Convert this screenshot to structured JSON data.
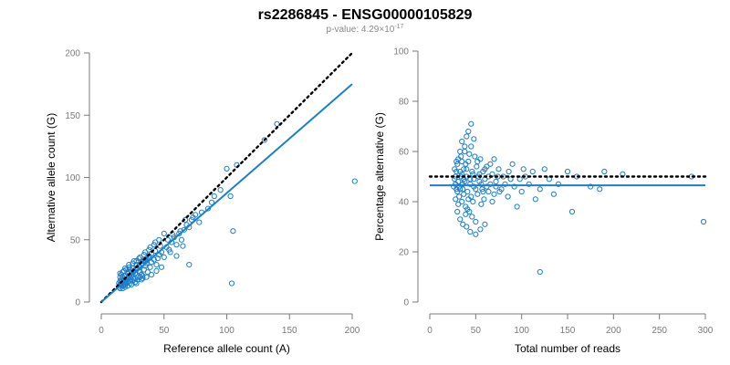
{
  "header": {
    "title": "rs2286845 - ENSG00000105829",
    "pvalue_prefix": "p-value: 4.29×10",
    "pvalue_exponent": "-17"
  },
  "colors": {
    "points": "#1a7fcf",
    "fit_line": "#1a7fcf",
    "reference_line": "#000000",
    "axis": "#7a7a7a"
  },
  "chart_data": [
    {
      "type": "scatter",
      "name": "left-panel",
      "xlabel": "Reference allele count (A)",
      "ylabel": "Alternative allele count (G)",
      "xlim": [
        0,
        200
      ],
      "ylim": [
        0,
        200
      ],
      "xticks": [
        0,
        50,
        100,
        150,
        200
      ],
      "yticks": [
        0,
        50,
        100,
        150,
        200
      ],
      "reference_line": {
        "style": "dotted",
        "from": [
          0,
          0
        ],
        "to": [
          200,
          200
        ]
      },
      "fit_line": {
        "style": "solid",
        "from": [
          0,
          0
        ],
        "to": [
          200,
          175
        ]
      },
      "points": [
        [
          14,
          12
        ],
        [
          15,
          14
        ],
        [
          16,
          15
        ],
        [
          17,
          13
        ],
        [
          18,
          16
        ],
        [
          15,
          20
        ],
        [
          16,
          22
        ],
        [
          18,
          18
        ],
        [
          20,
          15
        ],
        [
          21,
          19
        ],
        [
          22,
          24
        ],
        [
          23,
          17
        ],
        [
          24,
          21
        ],
        [
          25,
          27
        ],
        [
          26,
          18
        ],
        [
          27,
          23
        ],
        [
          28,
          30
        ],
        [
          29,
          20
        ],
        [
          30,
          25
        ],
        [
          31,
          28
        ],
        [
          32,
          22
        ],
        [
          33,
          33
        ],
        [
          34,
          26
        ],
        [
          35,
          29
        ],
        [
          36,
          31
        ],
        [
          37,
          24
        ],
        [
          38,
          35
        ],
        [
          39,
          28
        ],
        [
          40,
          32
        ],
        [
          42,
          34
        ],
        [
          44,
          30
        ],
        [
          46,
          38
        ],
        [
          48,
          40
        ],
        [
          50,
          36
        ],
        [
          52,
          44
        ],
        [
          54,
          42
        ],
        [
          56,
          48
        ],
        [
          58,
          52
        ],
        [
          60,
          46
        ],
        [
          62,
          55
        ],
        [
          64,
          50
        ],
        [
          66,
          58
        ],
        [
          68,
          62
        ],
        [
          70,
          60
        ],
        [
          72,
          66
        ],
        [
          75,
          70
        ],
        [
          78,
          64
        ],
        [
          80,
          72
        ],
        [
          85,
          75
        ],
        [
          88,
          80
        ],
        [
          90,
          85
        ],
        [
          95,
          90
        ],
        [
          100,
          107
        ],
        [
          103,
          85
        ],
        [
          105,
          57
        ],
        [
          108,
          110
        ],
        [
          104,
          15
        ],
        [
          130,
          130
        ],
        [
          140,
          143
        ],
        [
          202,
          97
        ],
        [
          17,
          17
        ],
        [
          19,
          21
        ],
        [
          21,
          16
        ],
        [
          23,
          26
        ],
        [
          25,
          22
        ],
        [
          27,
          19
        ],
        [
          29,
          27
        ],
        [
          31,
          24
        ],
        [
          33,
          21
        ],
        [
          35,
          34
        ],
        [
          19,
          12
        ],
        [
          24,
          14
        ],
        [
          28,
          15
        ],
        [
          32,
          18
        ],
        [
          36,
          20
        ],
        [
          40,
          22
        ],
        [
          44,
          25
        ],
        [
          48,
          28
        ],
        [
          30,
          35
        ],
        [
          26,
          33
        ],
        [
          22,
          30
        ],
        [
          20,
          26
        ],
        [
          18,
          25
        ],
        [
          16,
          18
        ],
        [
          17,
          20
        ],
        [
          15,
          17
        ],
        [
          14,
          15
        ],
        [
          19,
          17
        ],
        [
          21,
          23
        ],
        [
          23,
          20
        ],
        [
          34,
          38
        ],
        [
          38,
          42
        ],
        [
          42,
          46
        ],
        [
          46,
          50
        ],
        [
          50,
          55
        ],
        [
          55,
          40
        ],
        [
          60,
          37
        ],
        [
          65,
          45
        ],
        [
          70,
          30
        ],
        [
          45,
          35
        ],
        [
          16,
          13
        ],
        [
          18,
          14
        ],
        [
          20,
          18
        ],
        [
          22,
          21
        ],
        [
          24,
          24
        ],
        [
          26,
          25
        ],
        [
          28,
          27
        ],
        [
          30,
          29
        ],
        [
          32,
          31
        ],
        [
          34,
          33
        ],
        [
          36,
          35
        ],
        [
          38,
          37
        ],
        [
          40,
          39
        ],
        [
          43,
          41
        ],
        [
          47,
          45
        ],
        [
          53,
          50
        ],
        [
          57,
          54
        ],
        [
          63,
          57
        ],
        [
          67,
          66
        ],
        [
          73,
          68
        ],
        [
          15,
          11
        ],
        [
          17,
          11
        ],
        [
          19,
          14
        ],
        [
          21,
          13
        ],
        [
          23,
          15
        ],
        [
          25,
          17
        ],
        [
          27,
          16
        ],
        [
          29,
          18
        ],
        [
          31,
          20
        ],
        [
          33,
          19
        ],
        [
          15,
          23
        ],
        [
          17,
          24
        ],
        [
          19,
          27
        ],
        [
          22,
          28
        ],
        [
          25,
          31
        ],
        [
          28,
          33
        ],
        [
          31,
          36
        ],
        [
          35,
          40
        ],
        [
          39,
          44
        ],
        [
          43,
          48
        ]
      ]
    },
    {
      "type": "scatter",
      "name": "right-panel",
      "xlabel": "Total number of reads",
      "ylabel": "Percentage alternative (G)",
      "xlim": [
        0,
        300
      ],
      "ylim": [
        0,
        100
      ],
      "xticks": [
        0,
        50,
        100,
        150,
        200,
        250,
        300
      ],
      "yticks": [
        0,
        20,
        40,
        60,
        80,
        100
      ],
      "reference_line": {
        "style": "dotted",
        "y": 50,
        "x_range": [
          0,
          300
        ]
      },
      "fit_line": {
        "style": "solid",
        "y": 46.5,
        "x_range": [
          0,
          300
        ]
      },
      "points": [
        [
          28,
          50
        ],
        [
          29,
          45
        ],
        [
          30,
          55
        ],
        [
          31,
          48
        ],
        [
          32,
          42
        ],
        [
          33,
          52
        ],
        [
          34,
          58
        ],
        [
          35,
          40
        ],
        [
          36,
          47
        ],
        [
          37,
          53
        ],
        [
          38,
          60
        ],
        [
          39,
          38
        ],
        [
          40,
          50
        ],
        [
          41,
          44
        ],
        [
          42,
          56
        ],
        [
          43,
          36
        ],
        [
          44,
          49
        ],
        [
          45,
          62
        ],
        [
          46,
          34
        ],
        [
          47,
          51
        ],
        [
          48,
          46
        ],
        [
          49,
          58
        ],
        [
          50,
          32
        ],
        [
          51,
          54
        ],
        [
          52,
          43
        ],
        [
          53,
          50
        ],
        [
          54,
          48
        ],
        [
          55,
          57
        ],
        [
          56,
          39
        ],
        [
          57,
          45
        ],
        [
          58,
          52
        ],
        [
          59,
          41
        ],
        [
          60,
          49
        ],
        [
          62,
          54
        ],
        [
          64,
          44
        ],
        [
          66,
          47
        ],
        [
          68,
          51
        ],
        [
          70,
          43
        ],
        [
          72,
          48
        ],
        [
          75,
          53
        ],
        [
          78,
          45
        ],
        [
          80,
          50
        ],
        [
          85,
          42
        ],
        [
          88,
          49
        ],
        [
          90,
          55
        ],
        [
          95,
          38
        ],
        [
          100,
          44
        ],
        [
          104,
          50
        ],
        [
          108,
          47
        ],
        [
          112,
          52
        ],
        [
          115,
          41
        ],
        [
          120,
          45
        ],
        [
          125,
          53
        ],
        [
          130,
          49
        ],
        [
          135,
          43
        ],
        [
          140,
          47
        ],
        [
          150,
          52
        ],
        [
          155,
          36
        ],
        [
          175,
          46
        ],
        [
          185,
          45
        ],
        [
          120,
          12
        ],
        [
          298,
          32
        ],
        [
          285,
          50
        ],
        [
          210,
          51
        ],
        [
          190,
          52
        ],
        [
          160,
          50
        ],
        [
          45,
          71
        ],
        [
          40,
          66
        ],
        [
          35,
          64
        ],
        [
          38,
          62
        ],
        [
          42,
          68
        ],
        [
          48,
          65
        ],
        [
          30,
          36
        ],
        [
          33,
          33
        ],
        [
          36,
          31
        ],
        [
          40,
          30
        ],
        [
          44,
          28
        ],
        [
          50,
          27
        ],
        [
          55,
          29
        ],
        [
          60,
          31
        ],
        [
          28,
          47
        ],
        [
          30,
          44
        ],
        [
          32,
          46
        ],
        [
          34,
          50
        ],
        [
          36,
          45
        ],
        [
          38,
          48
        ],
        [
          40,
          53
        ],
        [
          42,
          41
        ],
        [
          44,
          47
        ],
        [
          46,
          52
        ],
        [
          48,
          49
        ],
        [
          50,
          45
        ],
        [
          52,
          56
        ],
        [
          54,
          51
        ],
        [
          56,
          47
        ],
        [
          58,
          44
        ],
        [
          60,
          53
        ],
        [
          62,
          46
        ],
        [
          64,
          50
        ],
        [
          66,
          55
        ],
        [
          29,
          52
        ],
        [
          31,
          57
        ],
        [
          33,
          60
        ],
        [
          35,
          56
        ],
        [
          37,
          43
        ],
        [
          39,
          35
        ],
        [
          41,
          37
        ],
        [
          43,
          59
        ],
        [
          45,
          42
        ],
        [
          47,
          40
        ],
        [
          27,
          49
        ],
        [
          26,
          46
        ],
        [
          27,
          53
        ],
        [
          28,
          41
        ],
        [
          29,
          56
        ],
        [
          31,
          39
        ],
        [
          33,
          45
        ],
        [
          35,
          51
        ],
        [
          37,
          49
        ],
        [
          39,
          55
        ],
        [
          68,
          40
        ],
        [
          70,
          57
        ],
        [
          72,
          46
        ],
        [
          74,
          50
        ],
        [
          76,
          44
        ],
        [
          82,
          47
        ],
        [
          86,
          52
        ],
        [
          92,
          46
        ],
        [
          98,
          49
        ],
        [
          102,
          53
        ]
      ]
    }
  ]
}
